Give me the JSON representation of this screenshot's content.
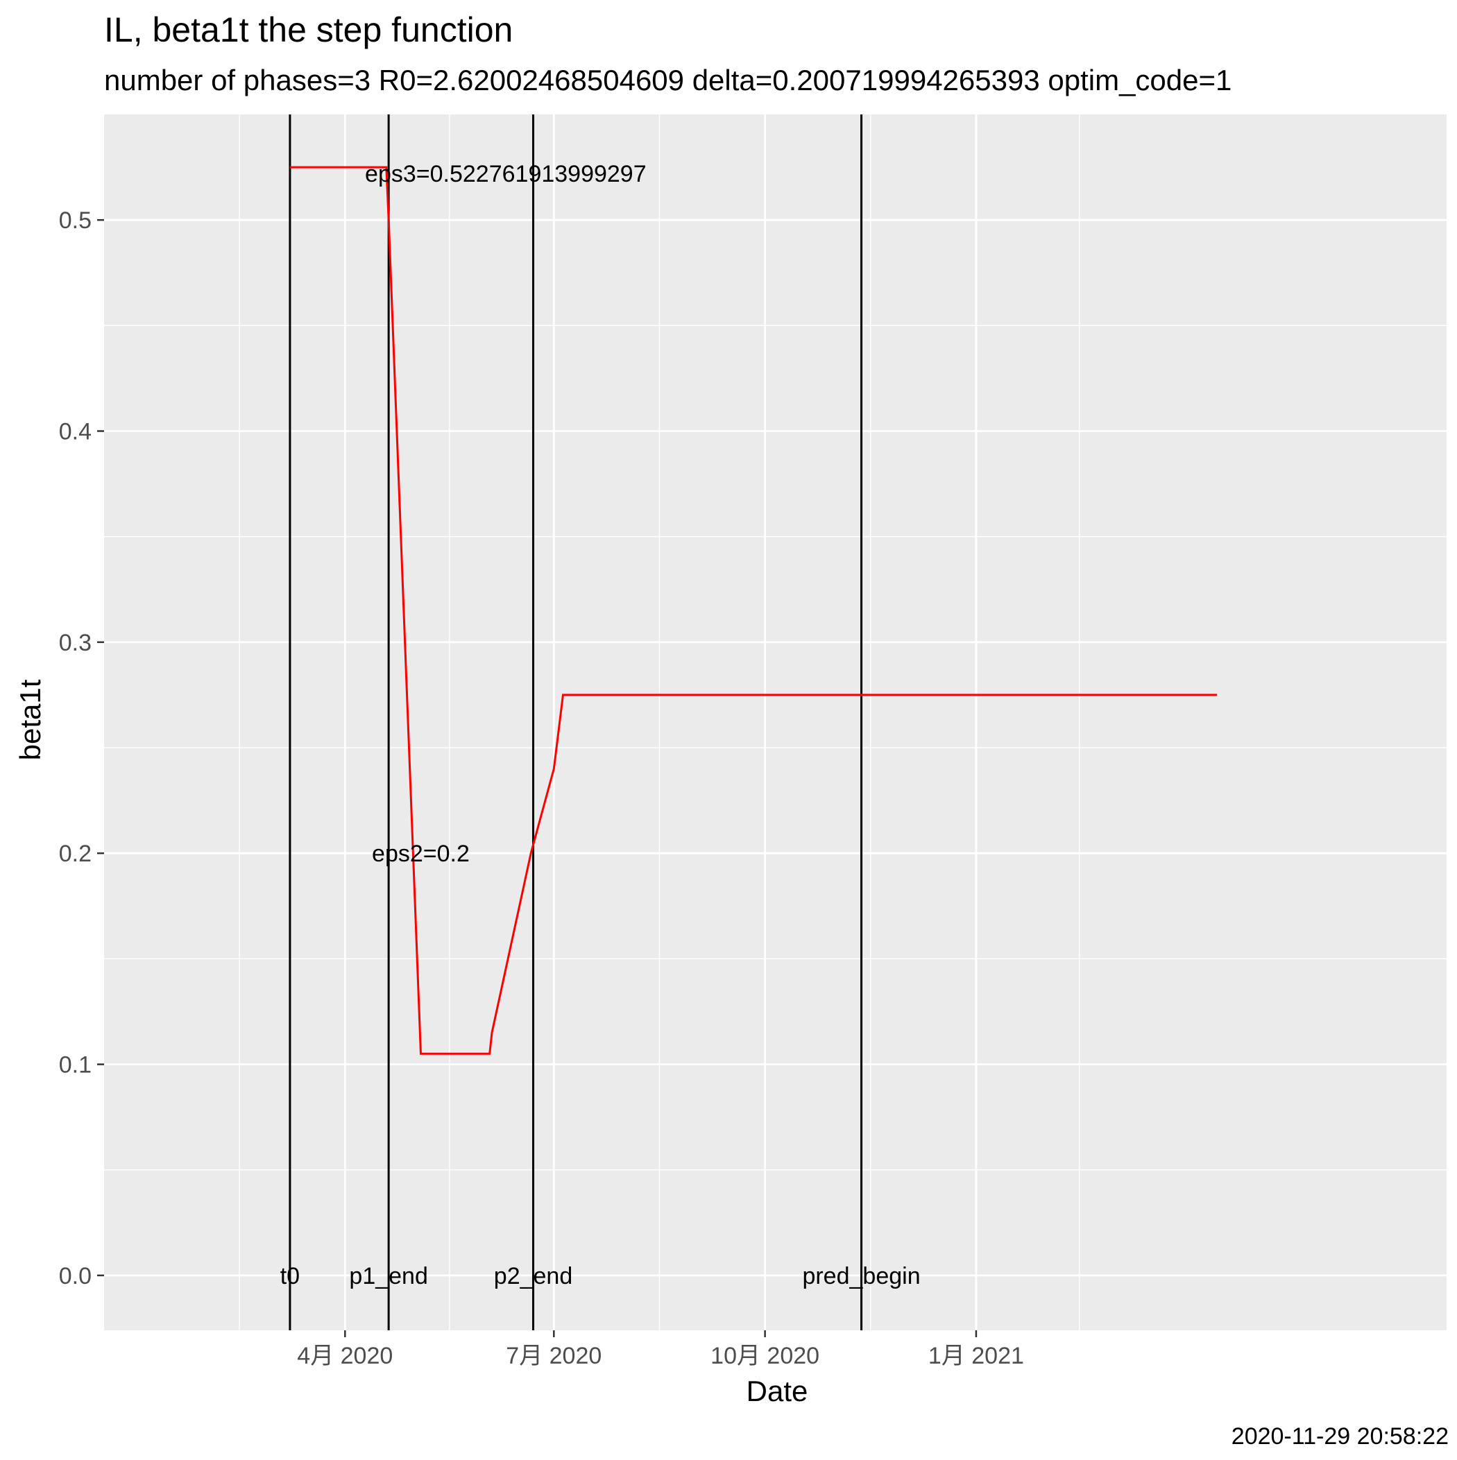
{
  "chart_data": {
    "type": "line",
    "title": "IL, beta1t the step function",
    "subtitle": "number of phases=3   R0=2.62002468504609   delta=0.200719994265393   optim_code=1",
    "xlabel": "Date",
    "ylabel": "beta1t",
    "caption": "2020-11-29 20:58:22",
    "xlim_days": [
      -105,
      480
    ],
    "ylim": [
      -0.026,
      0.55
    ],
    "x_ticks": [
      {
        "day": 0,
        "label": "4月 2020"
      },
      {
        "day": 91,
        "label": "7月 2020"
      },
      {
        "day": 183,
        "label": "10月 2020"
      },
      {
        "day": 275,
        "label": "1月 2021"
      }
    ],
    "x_minor_days": [
      -46,
      45.5,
      137,
      229,
      320
    ],
    "y_ticks": [
      0.0,
      0.1,
      0.2,
      0.3,
      0.4,
      0.5
    ],
    "y_tick_labels": [
      "0.0",
      "0.1",
      "0.2",
      "0.3",
      "0.4",
      "0.5"
    ],
    "y_minor": [
      0.05,
      0.15,
      0.25,
      0.35,
      0.45
    ],
    "series": [
      {
        "name": "beta1t",
        "color": "#ff0000",
        "x_days": [
          -24,
          18,
          19,
          33,
          63,
          64,
          81,
          91,
          95
        ],
        "y": [
          0.525,
          0.525,
          0.5,
          0.105,
          0.105,
          0.115,
          0.2,
          0.24,
          0.275
        ],
        "x_end_day": 380
      }
    ],
    "vlines": [
      {
        "day": -24,
        "label": "t0"
      },
      {
        "day": 19,
        "label": "p1_end"
      },
      {
        "day": 82,
        "label": "p2_end"
      },
      {
        "day": 225,
        "label": "pred_begin"
      }
    ],
    "annotations": [
      {
        "text": "eps3=0.522761913999297",
        "day": 70,
        "y": 0.522
      },
      {
        "text": "eps2=0.2",
        "day": 33,
        "y": 0.2
      }
    ],
    "colors": {
      "panel_bg": "#ebebeb",
      "grid": "#ffffff",
      "vline": "#000000",
      "axis_text": "#4d4d4d"
    }
  }
}
